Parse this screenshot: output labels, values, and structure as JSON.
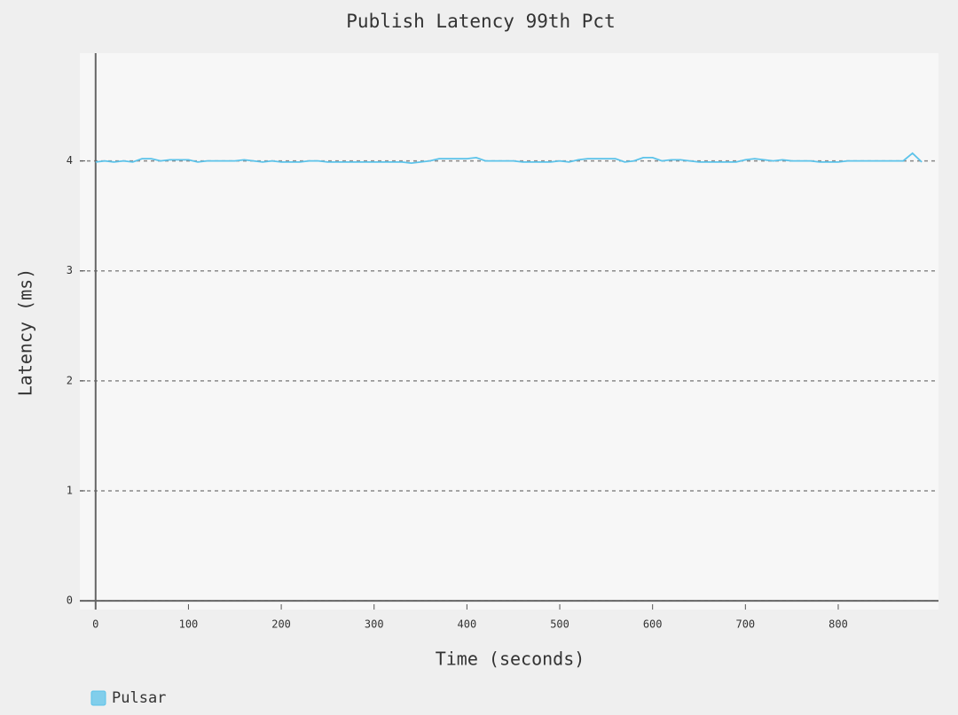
{
  "chart_data": {
    "type": "line",
    "title": "Publish Latency 99th Pct",
    "x_label": "Time (seconds)",
    "y_label": "Latency (ms)",
    "x": [
      0,
      10,
      20,
      30,
      40,
      50,
      60,
      70,
      80,
      90,
      100,
      110,
      120,
      130,
      140,
      150,
      160,
      170,
      180,
      190,
      200,
      210,
      220,
      230,
      240,
      250,
      260,
      270,
      280,
      290,
      300,
      310,
      320,
      330,
      340,
      350,
      360,
      370,
      380,
      390,
      400,
      410,
      420,
      430,
      440,
      450,
      460,
      470,
      480,
      490,
      500,
      510,
      520,
      530,
      540,
      550,
      560,
      570,
      580,
      590,
      600,
      610,
      620,
      630,
      640,
      650,
      660,
      670,
      680,
      690,
      700,
      710,
      720,
      730,
      740,
      750,
      760,
      770,
      780,
      790,
      800,
      810,
      820,
      830,
      840,
      850,
      860,
      870,
      880,
      890
    ],
    "series": [
      {
        "name": "Pulsar",
        "color": "#5cc3ea",
        "values": [
          3.99,
          4.0,
          3.99,
          4.0,
          3.99,
          4.02,
          4.02,
          4.0,
          4.01,
          4.01,
          4.01,
          3.99,
          4.0,
          4.0,
          4.0,
          4.0,
          4.01,
          4.0,
          3.99,
          4.0,
          3.99,
          3.99,
          3.99,
          4.0,
          4.0,
          3.99,
          3.99,
          3.99,
          3.99,
          3.99,
          3.99,
          3.99,
          3.99,
          3.99,
          3.98,
          3.99,
          4.0,
          4.02,
          4.02,
          4.02,
          4.02,
          4.03,
          4.0,
          4.0,
          4.0,
          4.0,
          3.99,
          3.99,
          3.99,
          3.99,
          4.0,
          3.99,
          4.01,
          4.02,
          4.02,
          4.02,
          4.02,
          3.99,
          4.0,
          4.03,
          4.03,
          4.0,
          4.01,
          4.01,
          4.0,
          3.99,
          3.99,
          3.99,
          3.99,
          3.99,
          4.01,
          4.02,
          4.01,
          4.0,
          4.01,
          4.0,
          4.0,
          4.0,
          3.99,
          3.99,
          3.99,
          4.0,
          4.0,
          4.0,
          4.0,
          4.0,
          4.0,
          4.0,
          4.07,
          3.99
        ]
      }
    ],
    "xlim": [
      -17,
      908
    ],
    "ylim": [
      -0.08,
      4.98
    ],
    "xticks": [
      0,
      100,
      200,
      300,
      400,
      500,
      600,
      700,
      800
    ],
    "yticks": [
      0,
      1,
      2,
      3,
      4
    ],
    "grid": true,
    "legend": "bottom-left"
  }
}
